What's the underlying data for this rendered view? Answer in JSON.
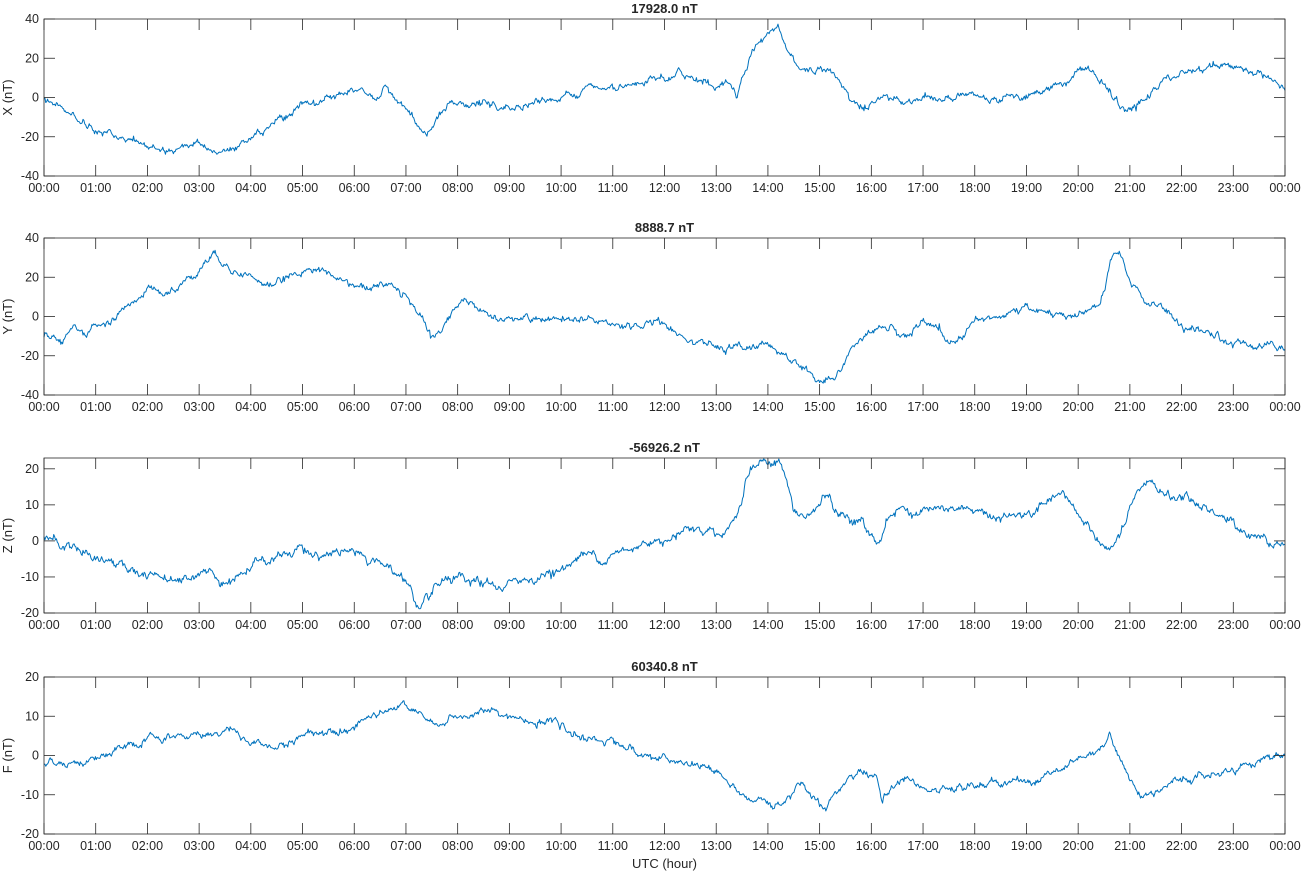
{
  "figure": {
    "xlabel": "UTC (hour)",
    "x_tick_labels": [
      "00:00",
      "01:00",
      "02:00",
      "03:00",
      "04:00",
      "05:00",
      "06:00",
      "07:00",
      "08:00",
      "09:00",
      "10:00",
      "11:00",
      "12:00",
      "13:00",
      "14:00",
      "15:00",
      "16:00",
      "17:00",
      "18:00",
      "19:00",
      "20:00",
      "21:00",
      "22:00",
      "23:00",
      "00:00"
    ]
  },
  "chart_data": [
    {
      "type": "line",
      "title": "17928.0 nT",
      "ylabel": "X (nT)",
      "xlabel": "",
      "xlim": [
        0,
        24
      ],
      "ylim": [
        -40,
        40
      ],
      "yticks": [
        -40,
        -20,
        0,
        20,
        40
      ],
      "grid": false,
      "color": "#0072BD",
      "noise": 1.2,
      "series": [
        {
          "x": [
            0,
            0.2,
            0.4,
            0.6,
            0.8,
            1.0,
            1.3,
            1.6,
            1.9,
            2.2,
            2.5,
            2.8,
            3.0,
            3.2,
            3.5,
            3.8,
            4.0,
            4.3,
            4.6,
            4.9,
            5.0,
            5.3,
            5.6,
            5.9,
            6.1,
            6.3,
            6.5,
            6.7,
            6.9,
            7.1,
            7.3,
            7.4,
            7.5,
            7.6,
            7.8,
            8.0,
            8.3,
            8.6,
            8.9,
            9.0,
            9.3,
            9.6,
            9.9,
            10.2,
            10.4,
            10.7,
            11.0,
            11.3,
            11.5,
            11.7,
            12.0,
            12.3,
            12.6,
            12.9,
            13.1,
            13.3,
            13.4,
            13.5,
            13.7,
            13.9,
            14.1,
            14.2,
            14.3,
            14.5,
            14.7,
            14.9,
            15.1,
            15.3,
            15.5,
            15.7,
            15.9,
            16.0,
            16.2,
            16.4,
            16.7,
            17.0,
            17.3,
            17.6,
            17.9,
            18.2,
            18.5,
            18.8,
            19.1,
            19.4,
            19.6,
            19.8,
            20.0,
            20.2,
            20.4,
            20.6,
            20.8,
            21.0,
            21.2,
            21.5,
            21.8,
            22.1,
            22.4,
            22.7,
            23.0,
            23.3,
            23.6,
            23.8,
            24.0
          ],
          "y": [
            0,
            -3,
            -8,
            -10,
            -13,
            -17,
            -19,
            -22,
            -24,
            -25,
            -25,
            -24,
            -22,
            -27,
            -26,
            -25,
            -24,
            -16,
            -10,
            -6,
            -3,
            -3,
            0,
            2,
            4,
            2,
            1,
            3,
            -4,
            -10,
            -19,
            -21,
            -16,
            -10,
            -5,
            -4,
            -3,
            -4,
            -6,
            -5,
            -3,
            -1,
            0,
            2,
            4,
            4,
            5,
            4,
            6,
            8,
            9,
            12,
            10,
            7,
            7,
            6,
            2,
            10,
            24,
            30,
            35,
            36,
            29,
            20,
            15,
            13,
            17,
            10,
            4,
            -4,
            -6,
            -2,
            1,
            -1,
            -1,
            0,
            1,
            -1,
            2,
            0,
            0,
            2,
            1,
            4,
            6,
            8,
            14,
            14,
            10,
            3,
            -5,
            -6,
            -4,
            5,
            10,
            13,
            15,
            17,
            16,
            14,
            12,
            8,
            2
          ]
        }
      ]
    },
    {
      "type": "line",
      "title": "8888.7 nT",
      "ylabel": "Y (nT)",
      "xlabel": "",
      "xlim": [
        0,
        24
      ],
      "ylim": [
        -40,
        40
      ],
      "yticks": [
        -40,
        -20,
        0,
        20,
        40
      ],
      "grid": false,
      "color": "#0072BD",
      "noise": 1.2,
      "series": [
        {
          "x": [
            0,
            0.2,
            0.4,
            0.6,
            0.8,
            1.0,
            1.3,
            1.5,
            1.7,
            2.0,
            2.3,
            2.6,
            2.9,
            3.1,
            3.3,
            3.5,
            3.7,
            4.0,
            4.2,
            4.5,
            4.8,
            5.0,
            5.3,
            5.6,
            5.9,
            6.2,
            6.5,
            6.8,
            7.0,
            7.2,
            7.4,
            7.5,
            7.7,
            7.9,
            8.1,
            8.3,
            8.6,
            8.9,
            9.2,
            9.5,
            9.8,
            10.1,
            10.4,
            10.7,
            11.0,
            11.3,
            11.6,
            11.9,
            12.2,
            12.5,
            12.8,
            13.1,
            13.3,
            13.5,
            13.7,
            14.0,
            14.3,
            14.6,
            14.9,
            15.1,
            15.3,
            15.5,
            15.8,
            16.1,
            16.4,
            16.7,
            17.0,
            17.3,
            17.5,
            17.8,
            18.1,
            18.4,
            18.7,
            19.0,
            19.3,
            19.6,
            19.9,
            20.2,
            20.4,
            20.5,
            20.6,
            20.7,
            20.8,
            20.9,
            21.1,
            21.3,
            21.6,
            21.9,
            22.2,
            22.5,
            22.8,
            23.1,
            23.4,
            23.7,
            24.0
          ],
          "y": [
            -10,
            -10,
            -12,
            -8,
            -9,
            -5,
            -2,
            3,
            8,
            14,
            12,
            15,
            22,
            28,
            32,
            26,
            24,
            20,
            16,
            18,
            22,
            24,
            24,
            21,
            17,
            15,
            15,
            16,
            13,
            3,
            -7,
            -13,
            -8,
            2,
            8,
            6,
            2,
            0,
            -2,
            -3,
            -2,
            -3,
            -2,
            -4,
            -5,
            -5,
            -4,
            -3,
            -6,
            -10,
            -13,
            -16,
            -16,
            -15,
            -18,
            -13,
            -20,
            -25,
            -30,
            -34,
            -31,
            -22,
            -12,
            -8,
            -5,
            -10,
            -4,
            -6,
            -13,
            -8,
            -2,
            0,
            2,
            4,
            3,
            0,
            0,
            3,
            5,
            12,
            25,
            32,
            30,
            24,
            15,
            8,
            5,
            -3,
            -8,
            -10,
            -12,
            -14,
            -14,
            -13,
            -15
          ]
        }
      ]
    },
    {
      "type": "line",
      "title": "-56926.2 nT",
      "ylabel": "Z (nT)",
      "xlabel": "",
      "xlim": [
        0,
        24
      ],
      "ylim": [
        -20,
        23
      ],
      "yticks": [
        -20,
        -10,
        0,
        10,
        20
      ],
      "grid": false,
      "color": "#0072BD",
      "noise": 0.8,
      "series": [
        {
          "x": [
            0,
            0.2,
            0.4,
            0.6,
            0.9,
            1.2,
            1.5,
            1.8,
            2.1,
            2.4,
            2.7,
            3.0,
            3.2,
            3.4,
            3.6,
            3.9,
            4.1,
            4.4,
            4.7,
            4.9,
            5.0,
            5.2,
            5.5,
            5.8,
            6.1,
            6.3,
            6.5,
            6.7,
            6.9,
            7.1,
            7.2,
            7.3,
            7.5,
            7.7,
            8.0,
            8.3,
            8.6,
            8.9,
            9.2,
            9.5,
            9.8,
            10.0,
            10.2,
            10.4,
            10.7,
            11.0,
            11.3,
            11.6,
            11.9,
            12.1,
            12.3,
            12.6,
            12.9,
            13.1,
            13.3,
            13.4,
            13.5,
            13.6,
            13.8,
            14.0,
            14.2,
            14.3,
            14.4,
            14.5,
            14.7,
            14.9,
            15.0,
            15.1,
            15.2,
            15.3,
            15.5,
            15.8,
            16.0,
            16.1,
            16.3,
            16.5,
            16.8,
            17.1,
            17.4,
            17.7,
            18.0,
            18.3,
            18.6,
            18.9,
            19.2,
            19.5,
            19.7,
            19.9,
            20.1,
            20.3,
            20.5,
            20.6,
            20.8,
            21.0,
            21.2,
            21.4,
            21.6,
            21.9,
            22.2,
            22.5,
            22.8,
            23.1,
            23.4,
            23.7,
            24.0
          ],
          "y": [
            1,
            0,
            -2,
            -2,
            -4,
            -5,
            -7,
            -9,
            -9,
            -10,
            -10,
            -9,
            -8,
            -11,
            -10,
            -9,
            -7,
            -5,
            -3,
            -2,
            -1,
            -4,
            -3,
            -3,
            -4,
            -6,
            -5,
            -8,
            -10,
            -13,
            -17,
            -19,
            -15,
            -12,
            -11,
            -12,
            -12,
            -13,
            -11,
            -10,
            -9,
            -8,
            -6,
            -4,
            -4,
            -4,
            -3,
            -1,
            1,
            1,
            3,
            4,
            3,
            2,
            5,
            8,
            12,
            18,
            21,
            22,
            22,
            20,
            14,
            8,
            6,
            8,
            10,
            13,
            11,
            8,
            6,
            5,
            2,
            -1,
            6,
            9,
            8,
            9,
            8,
            9,
            7,
            8,
            6,
            7,
            8,
            10,
            12,
            10,
            5,
            2,
            -1,
            -3,
            1,
            8,
            14,
            16,
            14,
            12,
            11,
            9,
            6,
            4,
            2,
            0,
            -1
          ]
        }
      ]
    },
    {
      "type": "line",
      "title": "60340.8 nT",
      "ylabel": "F (nT)",
      "xlabel": "UTC (hour)",
      "xlim": [
        0,
        24
      ],
      "ylim": [
        -20,
        20
      ],
      "yticks": [
        -20,
        -10,
        0,
        10,
        20
      ],
      "grid": false,
      "color": "#0072BD",
      "noise": 0.6,
      "series": [
        {
          "x": [
            0,
            0.3,
            0.6,
            0.9,
            1.2,
            1.5,
            1.8,
            2.1,
            2.4,
            2.7,
            3.0,
            3.3,
            3.6,
            3.9,
            4.1,
            4.4,
            4.7,
            4.9,
            5.1,
            5.4,
            5.7,
            6.0,
            6.3,
            6.5,
            6.8,
            7.0,
            7.2,
            7.4,
            7.6,
            7.8,
            8.1,
            8.4,
            8.7,
            9.0,
            9.3,
            9.6,
            9.9,
            10.2,
            10.4,
            10.7,
            11.0,
            11.3,
            11.6,
            11.9,
            12.2,
            12.5,
            12.8,
            13.1,
            13.3,
            13.5,
            13.7,
            13.9,
            14.1,
            14.3,
            14.5,
            14.7,
            14.9,
            15.1,
            15.3,
            15.6,
            15.9,
            16.1,
            16.2,
            16.4,
            16.7,
            17.0,
            17.3,
            17.6,
            17.9,
            18.2,
            18.5,
            18.8,
            19.1,
            19.4,
            19.7,
            20.0,
            20.3,
            20.5,
            20.6,
            20.7,
            20.8,
            21.0,
            21.2,
            21.4,
            21.6,
            21.9,
            22.2,
            22.5,
            22.8,
            23.1,
            23.4,
            23.7,
            24.0
          ],
          "y": [
            -2,
            -1,
            -2,
            -1,
            0,
            1,
            3,
            4,
            4,
            5,
            5,
            6,
            7,
            4,
            3,
            2,
            3,
            4,
            6,
            6,
            7,
            8,
            10,
            12,
            12,
            13,
            11,
            9,
            7,
            9,
            10,
            11,
            11,
            10,
            9,
            8,
            8,
            5,
            5,
            4,
            4,
            2,
            0,
            -1,
            -2,
            -2,
            -3,
            -5,
            -8,
            -10,
            -12,
            -12,
            -13,
            -12,
            -8,
            -7,
            -10,
            -13,
            -10,
            -6,
            -4,
            -6,
            -11,
            -8,
            -6,
            -8,
            -10,
            -9,
            -8,
            -7,
            -7,
            -6,
            -7,
            -5,
            -3,
            -1,
            1,
            3,
            5,
            3,
            0,
            -6,
            -11,
            -9,
            -8,
            -6,
            -6,
            -5,
            -4,
            -3,
            -2,
            0,
            0
          ]
        }
      ]
    }
  ]
}
